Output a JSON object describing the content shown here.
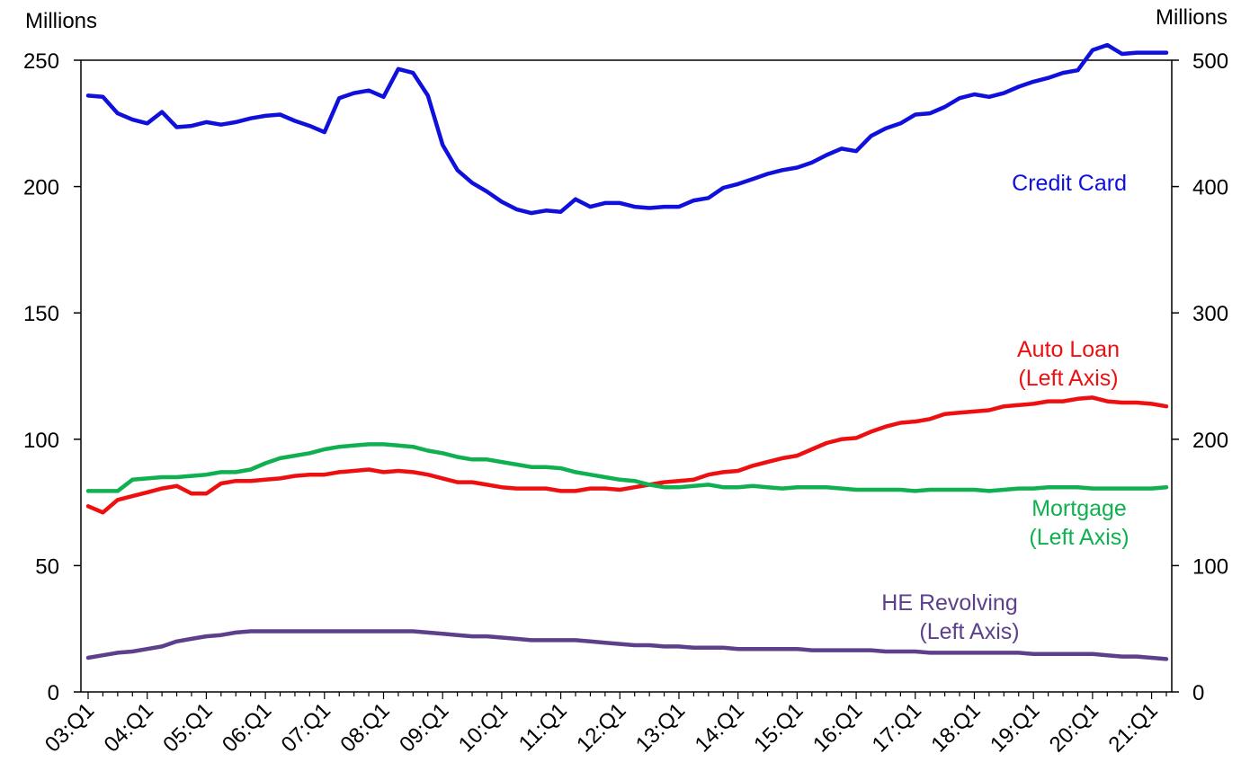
{
  "chart_data": {
    "type": "line",
    "left_axis_label": "Millions",
    "right_axis_label": "Millions",
    "left_ylim": [
      0,
      250
    ],
    "left_ticks": [
      0,
      50,
      100,
      150,
      200,
      250
    ],
    "right_ylim": [
      0,
      500
    ],
    "right_ticks": [
      0,
      100,
      200,
      300,
      400,
      500
    ],
    "x_tick_labels": [
      "03:Q1",
      "04:Q1",
      "05:Q1",
      "06:Q1",
      "07:Q1",
      "08:Q1",
      "09:Q1",
      "10:Q1",
      "11:Q1",
      "12:Q1",
      "13:Q1",
      "14:Q1",
      "15:Q1",
      "16:Q1",
      "17:Q1",
      "18:Q1",
      "19:Q1",
      "20:Q1",
      "21:Q1"
    ],
    "quarters_count": 74,
    "series": [
      {
        "name": "Credit Card",
        "label_lines": [
          "Credit Card"
        ],
        "axis": "right",
        "color": "#1010DD",
        "values": [
          472,
          471,
          458,
          453,
          450,
          459,
          447,
          448,
          451,
          449,
          451,
          454,
          456,
          457,
          452,
          448,
          443,
          470,
          474,
          476,
          471,
          493,
          490,
          472,
          433,
          413,
          403,
          396,
          388,
          382,
          379,
          381,
          380,
          390,
          384,
          387,
          387,
          384,
          383,
          384,
          384,
          389,
          391,
          399,
          402,
          406,
          410,
          413,
          415,
          419,
          425,
          430,
          428,
          440,
          446,
          450,
          457,
          458,
          463,
          470,
          473,
          471,
          474,
          479,
          483,
          486,
          490,
          492,
          508,
          512,
          505,
          506,
          506,
          506
        ]
      },
      {
        "name": "Auto Loan",
        "label_lines": [
          "Auto Loan",
          "(Left Axis)"
        ],
        "axis": "left",
        "color": "#EE1010",
        "values": [
          73.5,
          71,
          76,
          77.5,
          79,
          80.5,
          81.5,
          78.5,
          78.5,
          82.5,
          83.5,
          83.5,
          84,
          84.5,
          85.5,
          86,
          86,
          87,
          87.5,
          88,
          87,
          87.5,
          87,
          86,
          84.5,
          83,
          83,
          82,
          81,
          80.5,
          80.5,
          80.5,
          79.5,
          79.5,
          80.5,
          80.5,
          80,
          81,
          82,
          83,
          83.5,
          84,
          86,
          87,
          87.5,
          89.5,
          91,
          92.5,
          93.5,
          96,
          98.5,
          100,
          100.5,
          103,
          105,
          106.5,
          107,
          108,
          110,
          110.5,
          111,
          111.5,
          113,
          113.5,
          114,
          115,
          115,
          116,
          116.5,
          115,
          114.5,
          114.5,
          114,
          113
        ]
      },
      {
        "name": "Mortgage",
        "label_lines": [
          "Mortgage",
          "(Left Axis)"
        ],
        "axis": "left",
        "color": "#10B050",
        "values": [
          79.5,
          79.5,
          79.5,
          84,
          84.5,
          85,
          85,
          85.5,
          86,
          87,
          87,
          88,
          90.5,
          92.5,
          93.5,
          94.5,
          96,
          97,
          97.5,
          98,
          98,
          97.5,
          97,
          95.5,
          94.5,
          93,
          92,
          92,
          91,
          90,
          89,
          89,
          88.5,
          87,
          86,
          85,
          84,
          83.5,
          82,
          81,
          81,
          81.5,
          82,
          81,
          81,
          81.5,
          81,
          80.5,
          81,
          81,
          81,
          80.5,
          80,
          80,
          80,
          80,
          79.5,
          80,
          80,
          80,
          80,
          79.5,
          80,
          80.5,
          80.5,
          81,
          81,
          81,
          80.5,
          80.5,
          80.5,
          80.5,
          80.5,
          81
        ]
      },
      {
        "name": "HE Revolving",
        "label_lines": [
          "HE Revolving",
          "(Left Axis)"
        ],
        "axis": "left",
        "color": "#5E3F8C",
        "values": [
          13.5,
          14.5,
          15.5,
          16,
          17,
          18,
          20,
          21,
          22,
          22.5,
          23.5,
          24,
          24,
          24,
          24,
          24,
          24,
          24,
          24,
          24,
          24,
          24,
          24,
          23.5,
          23,
          22.5,
          22,
          22,
          21.5,
          21,
          20.5,
          20.5,
          20.5,
          20.5,
          20,
          19.5,
          19,
          18.5,
          18.5,
          18,
          18,
          17.5,
          17.5,
          17.5,
          17,
          17,
          17,
          17,
          17,
          16.5,
          16.5,
          16.5,
          16.5,
          16.5,
          16,
          16,
          16,
          15.5,
          15.5,
          15.5,
          15.5,
          15.5,
          15.5,
          15.5,
          15,
          15,
          15,
          15,
          15,
          14.5,
          14,
          14,
          13.5,
          13
        ]
      }
    ]
  }
}
